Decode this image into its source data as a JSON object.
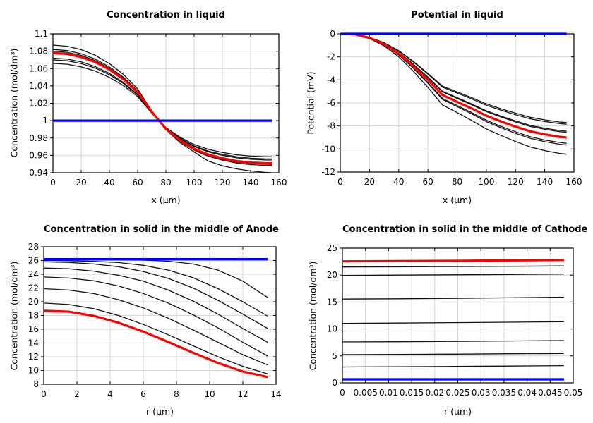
{
  "page": {
    "background": "#ffffff"
  },
  "palette": {
    "black_series": "#121212",
    "red_series": "#ff0000",
    "blue_series": "#0000ff",
    "grid": "#d6d6d6",
    "frame": "#000000",
    "text": "#000000"
  },
  "chart_data": [
    {
      "id": "concentration-in-liquid",
      "type": "line",
      "title": "Concentration in liquid",
      "xlabel": "x (µm)",
      "ylabel": "Concentration (mol/dm³)",
      "xlim": [
        0,
        160
      ],
      "ylim": [
        0.94,
        1.1
      ],
      "grid": true,
      "legend": "none",
      "xticks": {
        "values": [
          0,
          20,
          40,
          60,
          80,
          100,
          120,
          140,
          160
        ],
        "labels": [
          "0",
          "20",
          "40",
          "60",
          "80",
          "100",
          "120",
          "140",
          "160"
        ]
      },
      "yticks": {
        "values": [
          0.94,
          0.96,
          0.98,
          1,
          1.02,
          1.04,
          1.06,
          1.08,
          1.1
        ],
        "labels": [
          "0.94",
          "0.96",
          "0.98",
          "1",
          "1.02",
          "1.04",
          "1.06",
          "1.08",
          "1.1"
        ]
      },
      "x": [
        0,
        10,
        20,
        30,
        40,
        50,
        60,
        70,
        80,
        90,
        100,
        110,
        120,
        130,
        140,
        150,
        155
      ],
      "series": [
        {
          "name": "black-1",
          "color": "#121212",
          "width": 1.3,
          "y": [
            1.087,
            1.0857,
            1.0818,
            1.0753,
            1.0657,
            1.0531,
            1.0365,
            1.0113,
            0.9896,
            0.9748,
            0.9639,
            0.9535,
            0.948,
            0.9445,
            0.942,
            0.9405,
            0.94
          ]
        },
        {
          "name": "black-2",
          "color": "#121212",
          "width": 1.3,
          "y": [
            1.082,
            1.0808,
            1.0771,
            1.0709,
            1.0619,
            1.05,
            1.0344,
            1.0107,
            0.9902,
            0.9762,
            0.966,
            0.959,
            0.9545,
            0.9512,
            0.9493,
            0.9485,
            0.9483
          ]
        },
        {
          "name": "black-3",
          "color": "#121212",
          "width": 1.3,
          "y": [
            1.08,
            1.0788,
            1.0752,
            1.0692,
            1.0604,
            1.0488,
            1.0336,
            1.0104,
            0.9904,
            0.9768,
            0.9668,
            0.96,
            0.9556,
            0.9524,
            0.9506,
            0.9498,
            0.9496
          ]
        },
        {
          "name": "black-4",
          "color": "#121212",
          "width": 1.3,
          "y": [
            1.072,
            1.0709,
            1.0677,
            1.0623,
            1.0544,
            1.0439,
            1.0302,
            1.0094,
            0.9914,
            0.9791,
            0.9701,
            0.964,
            0.96,
            0.9572,
            0.9555,
            0.9548,
            0.9546
          ]
        },
        {
          "name": "black-5",
          "color": "#121212",
          "width": 1.3,
          "y": [
            1.07,
            1.069,
            1.0658,
            1.0606,
            1.0529,
            1.0427,
            1.0294,
            1.0091,
            0.9916,
            0.9797,
            0.971,
            0.965,
            0.9612,
            0.9584,
            0.9567,
            0.956,
            0.9559
          ]
        },
        {
          "name": "black-6",
          "color": "#121212",
          "width": 1.3,
          "y": [
            1.066,
            1.065,
            1.062,
            1.0571,
            1.0498,
            1.0403,
            1.0277,
            1.0086,
            0.9921,
            0.9809,
            0.9726,
            0.967,
            0.9634,
            0.9607,
            0.9592,
            0.9586,
            0.9584
          ]
        },
        {
          "name": "red",
          "color": "#ff0000",
          "width": 3.2,
          "y": [
            1.078,
            1.0768,
            1.0733,
            1.0675,
            1.0589,
            1.0476,
            1.0328,
            1.0101,
            0.9906,
            0.9774,
            0.9676,
            0.961,
            0.9567,
            0.9536,
            0.9518,
            0.951,
            0.9509
          ]
        },
        {
          "name": "blue",
          "color": "#0000ff",
          "width": 3.2,
          "x": [
            0,
            155
          ],
          "y": [
            1,
            1
          ]
        }
      ]
    },
    {
      "id": "potential-in-liquid",
      "type": "line",
      "title": "Potential in liquid",
      "xlabel": "x (µm)",
      "ylabel": "Potential (mV)",
      "xlim": [
        0,
        160
      ],
      "ylim": [
        -12,
        0
      ],
      "grid": true,
      "legend": "none",
      "xticks": {
        "values": [
          0,
          20,
          40,
          60,
          80,
          100,
          120,
          140,
          160
        ],
        "labels": [
          "0",
          "20",
          "40",
          "60",
          "80",
          "100",
          "120",
          "140",
          "160"
        ]
      },
      "yticks": {
        "values": [
          -12,
          -10,
          -8,
          -6,
          -4,
          -2,
          0
        ],
        "labels": [
          "-12",
          "-10",
          "-8",
          "-6",
          "-4",
          "-2",
          "0"
        ]
      },
      "x": [
        0,
        10,
        20,
        30,
        40,
        50,
        60,
        70,
        80,
        90,
        100,
        110,
        120,
        130,
        140,
        150,
        155
      ],
      "series": [
        {
          "name": "black-1",
          "color": "#121212",
          "width": 1.3,
          "y": [
            0,
            -0.05,
            -0.3,
            -0.77,
            -1.46,
            -2.39,
            -3.43,
            -4.54,
            -5.04,
            -5.54,
            -6.08,
            -6.51,
            -6.89,
            -7.24,
            -7.47,
            -7.65,
            -7.7
          ]
        },
        {
          "name": "black-2",
          "color": "#121212",
          "width": 1.3,
          "y": [
            0,
            -0.05,
            -0.31,
            -0.79,
            -1.49,
            -2.43,
            -3.49,
            -4.63,
            -5.14,
            -5.65,
            -6.2,
            -6.63,
            -7.03,
            -7.38,
            -7.61,
            -7.79,
            -7.85
          ]
        },
        {
          "name": "black-3",
          "color": "#121212",
          "width": 1.3,
          "y": [
            0,
            -0.05,
            -0.33,
            -0.85,
            -1.61,
            -2.62,
            -3.76,
            -4.99,
            -5.53,
            -6.08,
            -6.68,
            -7.14,
            -7.56,
            -7.94,
            -8.2,
            -8.39,
            -8.45
          ]
        },
        {
          "name": "black-4",
          "color": "#121212",
          "width": 1.3,
          "y": [
            0,
            -0.05,
            -0.33,
            -0.86,
            -1.62,
            -2.65,
            -3.8,
            -5.04,
            -5.6,
            -6.16,
            -6.75,
            -7.22,
            -7.65,
            -8.04,
            -8.29,
            -8.49,
            -8.55
          ]
        },
        {
          "name": "black-5",
          "color": "#121212",
          "width": 1.3,
          "y": [
            0,
            -0.06,
            -0.37,
            -0.95,
            -1.81,
            -2.95,
            -4.23,
            -5.61,
            -6.22,
            -6.84,
            -7.5,
            -8.03,
            -8.5,
            -8.93,
            -9.22,
            -9.43,
            -9.5
          ]
        },
        {
          "name": "black-6",
          "color": "#121212",
          "width": 1.3,
          "y": [
            0,
            -0.06,
            -0.38,
            -0.97,
            -1.83,
            -2.99,
            -4.29,
            -5.69,
            -6.32,
            -6.95,
            -7.62,
            -8.15,
            -8.64,
            -9.07,
            -9.36,
            -9.58,
            -9.65
          ]
        },
        {
          "name": "black-7",
          "color": "#121212",
          "width": 1.3,
          "y": [
            0,
            -0.06,
            -0.41,
            -1.05,
            -1.99,
            -3.24,
            -4.65,
            -6.17,
            -6.84,
            -7.52,
            -8.26,
            -8.83,
            -9.35,
            -9.82,
            -10.14,
            -10.38,
            -10.45
          ]
        },
        {
          "name": "red",
          "color": "#ff0000",
          "width": 3.2,
          "y": [
            0,
            -0.05,
            -0.35,
            -0.9,
            -1.71,
            -2.79,
            -4.0,
            -5.31,
            -5.9,
            -6.48,
            -7.11,
            -7.61,
            -8.06,
            -8.46,
            -8.73,
            -8.94,
            -9.0
          ]
        },
        {
          "name": "blue",
          "color": "#0000ff",
          "width": 3.2,
          "x": [
            0,
            155
          ],
          "y": [
            0,
            0
          ]
        }
      ]
    },
    {
      "id": "concentration-solid-anode",
      "type": "line",
      "title": "Concentration in solid in the middle of Anode",
      "xlabel": "r (µm)",
      "ylabel": "Concentration (mol/dm³)",
      "xlim": [
        0,
        14
      ],
      "ylim": [
        8,
        28
      ],
      "grid": true,
      "legend": "none",
      "xticks": {
        "values": [
          0,
          2,
          4,
          6,
          8,
          10,
          12,
          14
        ],
        "labels": [
          "0",
          "2",
          "4",
          "6",
          "8",
          "10",
          "12",
          "14"
        ]
      },
      "yticks": {
        "values": [
          8,
          10,
          12,
          14,
          16,
          18,
          20,
          22,
          24,
          26,
          28
        ],
        "labels": [
          "8",
          "10",
          "12",
          "14",
          "16",
          "18",
          "20",
          "22",
          "24",
          "26",
          "28"
        ]
      },
      "x": [
        0,
        1.5,
        3,
        4.5,
        6,
        7.5,
        9,
        10.5,
        12,
        13.5
      ],
      "series": [
        {
          "name": "black-1",
          "color": "#121212",
          "width": 1.3,
          "y": [
            26.15,
            26.14,
            26.12,
            26.1,
            26.05,
            25.9,
            25.5,
            24.6,
            23.0,
            20.6
          ]
        },
        {
          "name": "black-2",
          "color": "#121212",
          "width": 1.3,
          "y": [
            26.0,
            25.97,
            25.88,
            25.7,
            25.3,
            24.6,
            23.5,
            21.9,
            20.0,
            17.9
          ]
        },
        {
          "name": "black-3",
          "color": "#121212",
          "width": 1.3,
          "y": [
            25.8,
            25.72,
            25.5,
            25.1,
            24.4,
            23.4,
            22.0,
            20.2,
            18.2,
            16.1
          ]
        },
        {
          "name": "black-4",
          "color": "#121212",
          "width": 1.3,
          "y": [
            24.9,
            24.8,
            24.45,
            23.85,
            23.0,
            21.7,
            20.1,
            18.2,
            16.1,
            14.1
          ]
        },
        {
          "name": "black-5",
          "color": "#121212",
          "width": 1.3,
          "y": [
            23.6,
            23.45,
            23.05,
            22.3,
            21.2,
            19.8,
            18.1,
            16.2,
            14.1,
            12.1
          ]
        },
        {
          "name": "black-6",
          "color": "#121212",
          "width": 1.3,
          "y": [
            21.9,
            21.7,
            21.2,
            20.3,
            19.1,
            17.6,
            15.9,
            14.1,
            12.3,
            10.8
          ]
        },
        {
          "name": "black-7",
          "color": "#121212",
          "width": 1.3,
          "y": [
            19.8,
            19.6,
            19.0,
            18.0,
            16.7,
            15.2,
            13.6,
            12.0,
            10.6,
            9.5
          ]
        },
        {
          "name": "red",
          "color": "#ff0000",
          "width": 3.2,
          "y": [
            18.7,
            18.55,
            17.95,
            16.95,
            15.65,
            14.15,
            12.6,
            11.1,
            9.85,
            9.05
          ]
        },
        {
          "name": "blue",
          "color": "#0000ff",
          "width": 3.2,
          "x": [
            0,
            13.5
          ],
          "y": [
            26.2,
            26.2
          ]
        }
      ]
    },
    {
      "id": "concentration-solid-cathode",
      "type": "line",
      "title": "Concentration in solid in the middle of Cathode",
      "xlabel": "r (µm)",
      "ylabel": "Concentration (mol/dm³)",
      "xlim": [
        0,
        0.05
      ],
      "ylim": [
        0,
        25
      ],
      "grid": true,
      "legend": "none",
      "xticks": {
        "values": [
          0,
          0.005,
          0.01,
          0.015,
          0.02,
          0.025,
          0.03,
          0.035,
          0.04,
          0.045,
          0.05
        ],
        "labels": [
          "0",
          "0.005",
          "0.01",
          "0.015",
          "0.02",
          "0.025",
          "0.03",
          "0.035",
          "0.04",
          "0.045",
          "0.05"
        ]
      },
      "yticks": {
        "values": [
          0,
          5,
          10,
          15,
          20,
          25
        ],
        "labels": [
          "0",
          "5",
          "10",
          "15",
          "20",
          "25"
        ]
      },
      "x": [
        0,
        0.012,
        0.024,
        0.036,
        0.048
      ],
      "series": [
        {
          "name": "black-1",
          "color": "#121212",
          "width": 1.3,
          "y": [
            21.5,
            21.53,
            21.58,
            21.64,
            21.7
          ]
        },
        {
          "name": "black-2",
          "color": "#121212",
          "width": 1.3,
          "y": [
            19.95,
            20.0,
            20.05,
            20.12,
            20.2
          ]
        },
        {
          "name": "black-3",
          "color": "#121212",
          "width": 1.3,
          "y": [
            15.55,
            15.6,
            15.68,
            15.78,
            15.9
          ]
        },
        {
          "name": "black-4",
          "color": "#121212",
          "width": 1.3,
          "y": [
            11.05,
            11.1,
            11.18,
            11.26,
            11.35
          ]
        },
        {
          "name": "black-5",
          "color": "#121212",
          "width": 1.3,
          "y": [
            7.6,
            7.63,
            7.7,
            7.78,
            7.85
          ]
        },
        {
          "name": "black-6",
          "color": "#121212",
          "width": 1.3,
          "y": [
            5.25,
            5.28,
            5.33,
            5.4,
            5.45
          ]
        },
        {
          "name": "black-7",
          "color": "#121212",
          "width": 1.3,
          "y": [
            2.95,
            3.0,
            3.05,
            3.12,
            3.2
          ]
        },
        {
          "name": "red",
          "color": "#ff0000",
          "width": 3.2,
          "y": [
            22.55,
            22.6,
            22.65,
            22.72,
            22.8
          ]
        },
        {
          "name": "blue",
          "color": "#0000ff",
          "width": 3.2,
          "x": [
            0,
            0.048
          ],
          "y": [
            0.65,
            0.65
          ]
        }
      ]
    }
  ]
}
